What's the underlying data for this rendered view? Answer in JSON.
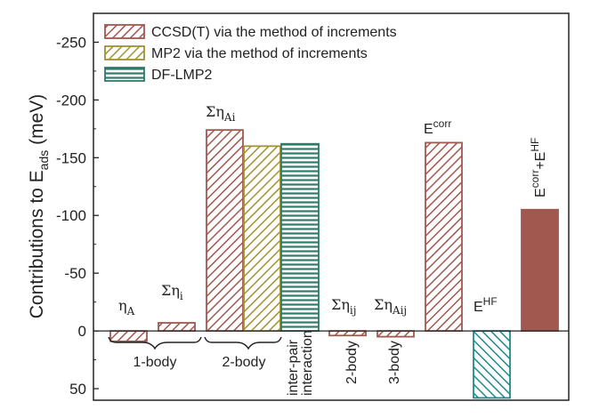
{
  "chart_data": {
    "type": "bar",
    "title": "",
    "xlabel": "",
    "ylabel": "Contributions to E",
    "ylabel_sub": "ads",
    "ylabel_unit": " (meV)",
    "ylim": [
      60,
      -275
    ],
    "y_inverted": true,
    "yticks": [
      50,
      0,
      -50,
      -100,
      -150,
      -200,
      -250
    ],
    "ytick_labels": [
      "50",
      "0",
      "-50",
      "-100",
      "-150",
      "-200",
      "-250"
    ],
    "legend_placement": "top-left",
    "series": [
      {
        "name": "CCSD(T) via the method of increments",
        "pattern": "diag-right",
        "color": "#a0584f"
      },
      {
        "name": "MP2 via the method of increments",
        "pattern": "diag-right",
        "color": "#a19232"
      },
      {
        "name": "DF-LMP2",
        "pattern": "horizontal",
        "color": "#2f7a6a"
      }
    ],
    "bars": [
      {
        "id": "eta-a",
        "series": 0,
        "value": 9,
        "fill": "pattern"
      },
      {
        "id": "sum-eta-i",
        "series": 0,
        "value": -7,
        "fill": "pattern"
      },
      {
        "id": "sum-eta-ai-ccsd",
        "series": 0,
        "value": -174,
        "fill": "pattern"
      },
      {
        "id": "sum-eta-ai-mp2",
        "series": 1,
        "value": -160,
        "fill": "pattern"
      },
      {
        "id": "sum-eta-ai-dflmp2",
        "series": 2,
        "value": -162,
        "fill": "pattern"
      },
      {
        "id": "sum-eta-ij",
        "series": 0,
        "value": 4,
        "fill": "pattern"
      },
      {
        "id": "sum-eta-aij",
        "series": 0,
        "value": 5,
        "fill": "pattern"
      },
      {
        "id": "e-corr",
        "series": 0,
        "value": -163,
        "fill": "pattern"
      },
      {
        "id": "e-hf",
        "series": 2,
        "value": 58,
        "fill": "pattern-diag-left"
      },
      {
        "id": "e-total",
        "series": 0,
        "value": -105,
        "fill": "solid"
      }
    ],
    "annotations": {
      "eta_a": {
        "base": "η",
        "sub": "A"
      },
      "sum_eta_i": {
        "base": "Ση",
        "sub": "i"
      },
      "sum_eta_ai": {
        "base": "Ση",
        "sub": "Ai"
      },
      "sum_eta_ij": {
        "base": "Ση",
        "sub": "ij"
      },
      "sum_eta_aij": {
        "base": "Ση",
        "sub": "Aij"
      },
      "e_corr": {
        "base": "E",
        "sup": "corr"
      },
      "e_hf": {
        "base": "E",
        "sup": "HF"
      },
      "e_total": {
        "base1": "E",
        "sup1": "corr",
        "plus": "+E",
        "sup2": "HF"
      }
    },
    "group_labels": {
      "one_body": "1-body",
      "two_body": "2-body",
      "inter_pair_1": "inter-pair",
      "inter_pair_2": "interaction",
      "two_body_b": "2-body",
      "three_body": "3-body"
    }
  }
}
